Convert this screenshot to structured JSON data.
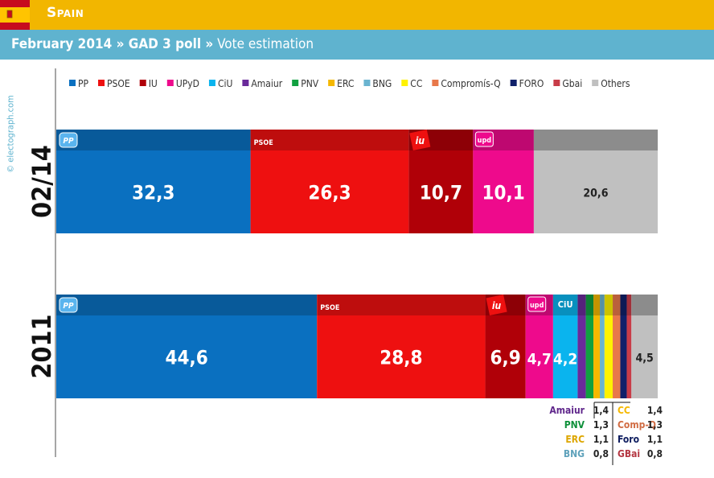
{
  "header": {
    "country": "Spain",
    "subtitle_bold": "February 2014 » GAD 3 poll »",
    "subtitle_rest": " Vote estimation"
  },
  "credit": "© electograph.com",
  "colors": {
    "PP": "#0a70c0",
    "PSOE": "#ee1010",
    "IU": "#b00008",
    "UPyD": "#ee0a8c",
    "CiU": "#0ab4ee",
    "Amaiur": "#6a2a9a",
    "PNV": "#10a040",
    "ERC": "#f5b800",
    "BNG": "#6ab4d0",
    "CC": "#fff200",
    "Compromís-Q": "#e8784a",
    "FORO": "#10206a",
    "Gbai": "#c83c48",
    "Others": "#c0c0c0"
  },
  "chart_data": {
    "type": "bar",
    "orientation": "horizontal-stacked",
    "legend": [
      "PP",
      "PSOE",
      "IU",
      "UPyD",
      "CiU",
      "Amaiur",
      "PNV",
      "ERC",
      "BNG",
      "CC",
      "Compromís-Q",
      "FORO",
      "Gbai",
      "Others"
    ],
    "legend_position": "top",
    "series_rows": [
      {
        "name": "02/14",
        "segments": [
          {
            "party": "PP",
            "value": 32.3,
            "label": "32,3",
            "logo": "PP"
          },
          {
            "party": "PSOE",
            "value": 26.3,
            "label": "26,3",
            "logo": "PSOE"
          },
          {
            "party": "IU",
            "value": 10.7,
            "label": "10,7",
            "logo": "iu"
          },
          {
            "party": "UPyD",
            "value": 10.1,
            "label": "10,1",
            "logo": "upd"
          },
          {
            "party": "Others",
            "value": 20.6,
            "label": "20,6",
            "logo": ""
          }
        ]
      },
      {
        "name": "2011",
        "segments": [
          {
            "party": "PP",
            "value": 44.6,
            "label": "44,6",
            "logo": "PP"
          },
          {
            "party": "PSOE",
            "value": 28.8,
            "label": "28,8",
            "logo": "PSOE"
          },
          {
            "party": "IU",
            "value": 6.9,
            "label": "6,9",
            "logo": "iu"
          },
          {
            "party": "UPyD",
            "value": 4.7,
            "label": "4,7",
            "logo": "upd"
          },
          {
            "party": "CiU",
            "value": 4.2,
            "label": "4,2",
            "logo": "CiU"
          },
          {
            "party": "Amaiur",
            "value": 1.4,
            "label": "",
            "logo": ""
          },
          {
            "party": "PNV",
            "value": 1.3,
            "label": "",
            "logo": ""
          },
          {
            "party": "ERC",
            "value": 1.1,
            "label": "",
            "logo": ""
          },
          {
            "party": "BNG",
            "value": 0.8,
            "label": "",
            "logo": ""
          },
          {
            "party": "CC",
            "value": 1.4,
            "label": "",
            "logo": ""
          },
          {
            "party": "Compromís-Q",
            "value": 1.3,
            "label": "",
            "logo": ""
          },
          {
            "party": "FORO",
            "value": 1.1,
            "label": "",
            "logo": ""
          },
          {
            "party": "Gbai",
            "value": 0.8,
            "label": "",
            "logo": ""
          },
          {
            "party": "Others",
            "value": 4.5,
            "label": "4,5",
            "logo": ""
          }
        ]
      }
    ],
    "small_parties_table": {
      "left": [
        {
          "name": "Amaiur",
          "value": "1,4",
          "party": "Amaiur"
        },
        {
          "name": "PNV",
          "value": "1,3",
          "party": "PNV"
        },
        {
          "name": "ERC",
          "value": "1,1",
          "party": "ERC"
        },
        {
          "name": "BNG",
          "value": "0,8",
          "party": "BNG"
        }
      ],
      "right": [
        {
          "name": "CC",
          "value": "1,4",
          "party": "CC"
        },
        {
          "name": "Comp-Q",
          "value": "1,3",
          "party": "Compromís-Q"
        },
        {
          "name": "Foro",
          "value": "1,1",
          "party": "FORO"
        },
        {
          "name": "GBai",
          "value": "0,8",
          "party": "Gbai"
        }
      ]
    },
    "xlim": [
      0,
      100
    ]
  }
}
